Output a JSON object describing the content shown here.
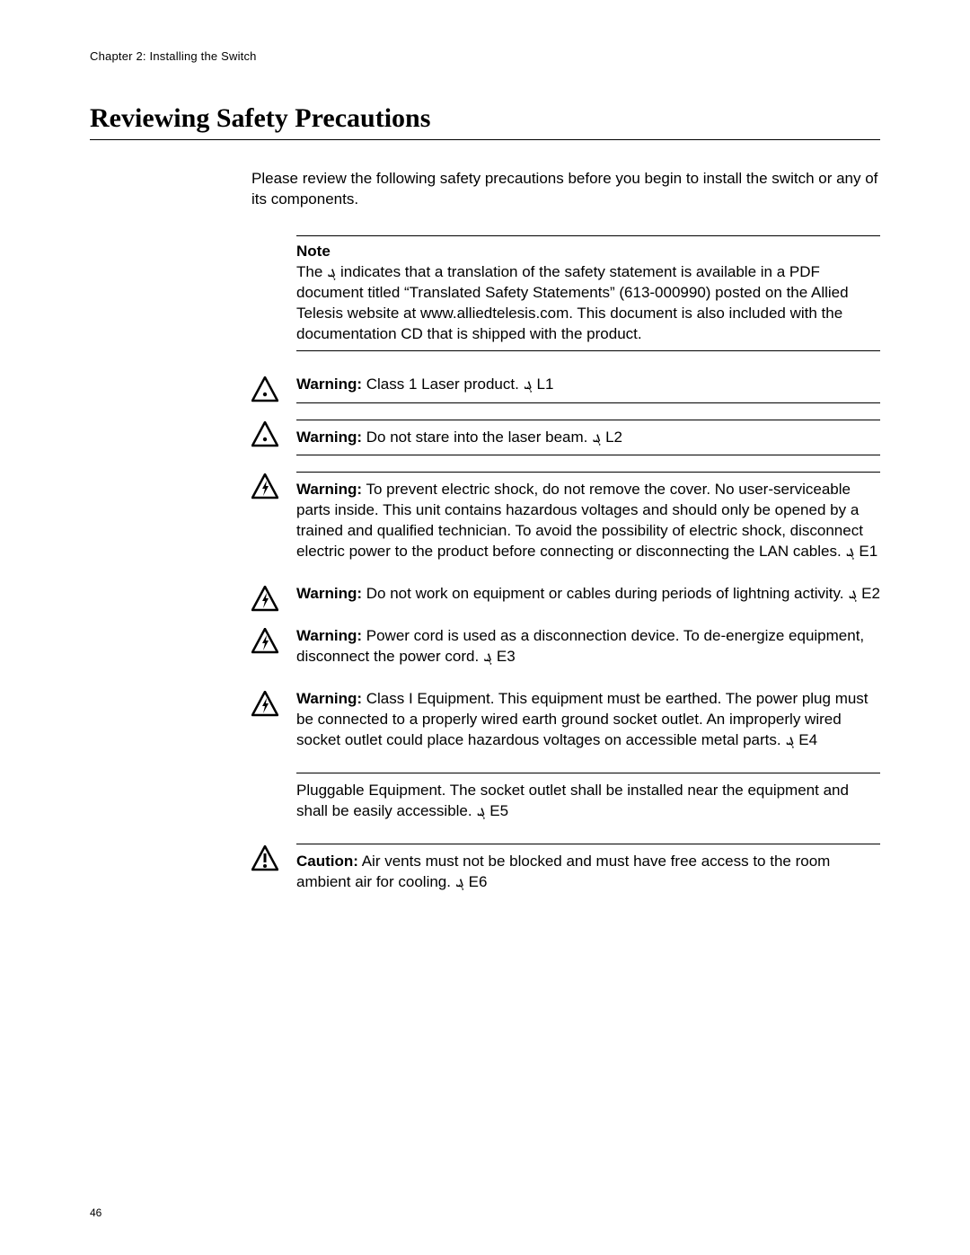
{
  "chapter_line": "Chapter 2: Installing the Switch",
  "section_title": "Reviewing Safety Precautions",
  "intro_text": "Please review the following safety precautions before you begin to install the switch or any of its components.",
  "note": {
    "title": "Note",
    "pre": "The ",
    "glyph": "ܔ",
    "post": " indicates that a translation of the safety statement is available in a PDF document titled “Translated Safety Statements” (613-000990) posted on the Allied Telesis website at www.alliedtelesis.com. This document is also included with the documentation CD that is shipped with the product."
  },
  "script_glyph": "ܔ",
  "icon_variants": {
    "dot": "dot",
    "bolt": "bolt",
    "bang": "bang"
  },
  "warnings": [
    {
      "icon": "dot",
      "label": "Warning:",
      "text": " Class 1 Laser product. ",
      "code": "L1",
      "top_rule": false,
      "bottom_rule": true
    },
    {
      "icon": "dot",
      "label": "Warning:",
      "text": " Do not stare into the laser beam. ",
      "code": "L2",
      "top_rule": true,
      "bottom_rule": true
    },
    {
      "icon": "bolt",
      "label": "Warning:",
      "text": " To prevent electric shock, do not remove the cover. No user-serviceable parts inside. This unit contains hazardous voltages and should only be opened by a trained and qualified technician. To avoid the possibility of electric shock, disconnect electric power to the product before connecting or disconnecting the LAN cables. ",
      "code": "E1",
      "top_rule": true,
      "bottom_rule": false
    },
    {
      "icon": "bolt",
      "label": "Warning:",
      "text": " Do not work on equipment or cables during periods of lightning activity. ",
      "code": "E2",
      "top_rule": false,
      "bottom_rule": false
    },
    {
      "icon": "bolt",
      "label": "Warning:",
      "text": " Power cord is used as a disconnection device. To de-energize equipment, disconnect the power cord. ",
      "code": "E3",
      "top_rule": false,
      "bottom_rule": false
    },
    {
      "icon": "bolt",
      "label": "Warning:",
      "text": " Class I Equipment. This equipment must be earthed. The power plug must be connected to a properly wired earth ground socket outlet. An improperly wired socket outlet could place hazardous voltages on accessible metal parts. ",
      "code": "E4",
      "top_rule": false,
      "bottom_rule": false
    },
    {
      "icon": "",
      "label": "",
      "text": "Pluggable Equipment. The socket outlet shall be installed near the equipment and shall be easily accessible. ",
      "code": "E5",
      "top_rule": true,
      "bottom_rule": false
    },
    {
      "icon": "bang",
      "label": "Caution:",
      "text": " Air vents must not be blocked and must have free access to the room ambient air for cooling. ",
      "code": "E6",
      "top_rule": true,
      "bottom_rule": false
    }
  ],
  "page_number": "46",
  "colors": {
    "text": "#000000",
    "background": "#ffffff",
    "rule": "#000000"
  }
}
